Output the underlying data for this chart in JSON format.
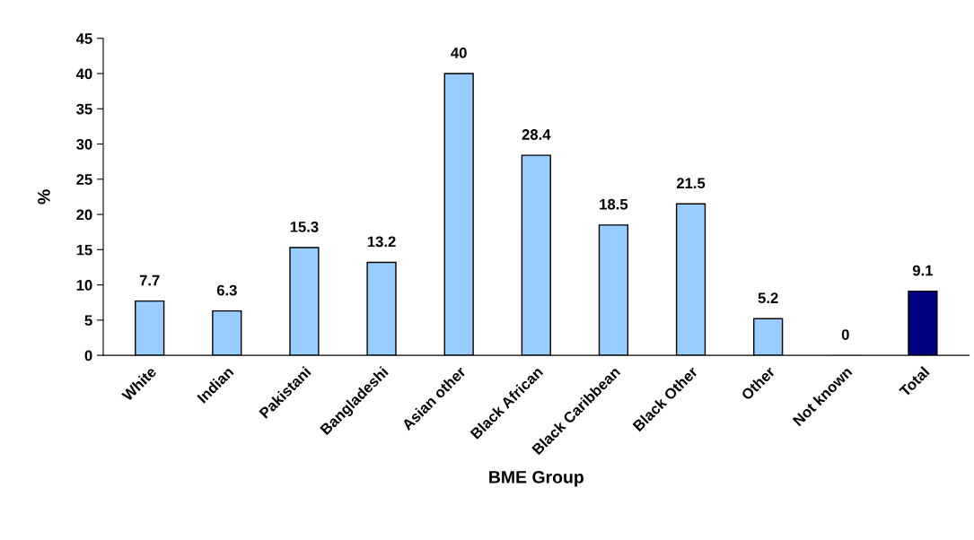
{
  "chart_data": {
    "type": "bar",
    "xlabel": "BME Group",
    "ylabel": "%",
    "categories": [
      "White",
      "Indian",
      "Pakistani",
      "Bangladeshi",
      "Asian other",
      "Black African",
      "Black Caribbean",
      "Black Other",
      "Other",
      "Not known",
      "Total"
    ],
    "values": [
      7.7,
      6.3,
      15.3,
      13.2,
      40,
      28.4,
      18.5,
      21.5,
      5.2,
      0,
      9.1
    ],
    "colors": [
      "#99ccff",
      "#99ccff",
      "#99ccff",
      "#99ccff",
      "#99ccff",
      "#99ccff",
      "#99ccff",
      "#99ccff",
      "#99ccff",
      "#99ccff",
      "#000080"
    ],
    "ylim": [
      0,
      45
    ],
    "yticks": [
      0,
      5,
      10,
      15,
      20,
      25,
      30,
      35,
      40,
      45
    ],
    "grid": false,
    "legend": false,
    "data_labels": true
  }
}
